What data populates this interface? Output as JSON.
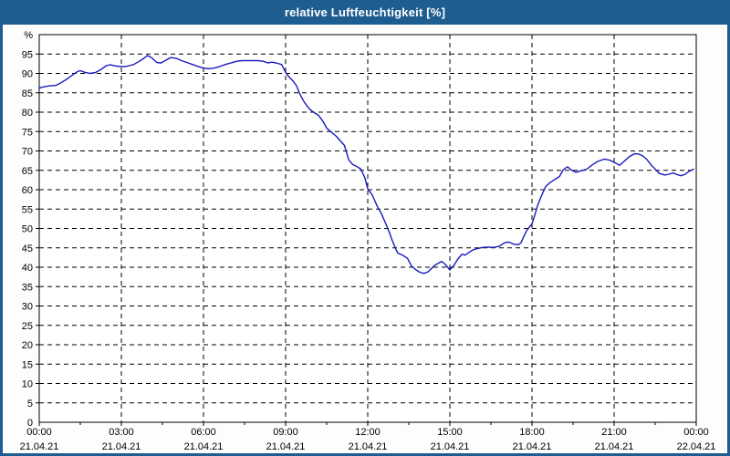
{
  "window": {
    "title": "relative Luftfeuchtigkeit [%]"
  },
  "colors": {
    "titlebar": "#1e5d90",
    "window_border": "#1e5d90",
    "line": "#1a1abd",
    "grid": "#000000",
    "frame": "#000000",
    "plot_background": "#ffffff",
    "text": "#000000"
  },
  "chart_data": {
    "type": "line",
    "title": "relative Luftfeuchtigkeit [%]",
    "xlabel": "",
    "ylabel": "%",
    "ylim": [
      0,
      100
    ],
    "ytick_step": 5,
    "ytick_labels": [
      "0",
      "5",
      "10",
      "15",
      "20",
      "25",
      "30",
      "35",
      "40",
      "45",
      "50",
      "55",
      "60",
      "65",
      "70",
      "75",
      "80",
      "85",
      "90",
      "95"
    ],
    "y_unit_label": "%",
    "xlim_hours": [
      0,
      24
    ],
    "xtick_interval_hours": 3,
    "x_minor_tick_hours": 1.5,
    "grid": "dashed",
    "legend": "none",
    "xticks": [
      {
        "time": "00:00",
        "date": "21.04.21"
      },
      {
        "time": "03:00",
        "date": "21.04.21"
      },
      {
        "time": "06:00",
        "date": "21.04.21"
      },
      {
        "time": "09:00",
        "date": "21.04.21"
      },
      {
        "time": "12:00",
        "date": "21.04.21"
      },
      {
        "time": "15:00",
        "date": "21.04.21"
      },
      {
        "time": "18:00",
        "date": "21.04.21"
      },
      {
        "time": "21:00",
        "date": "21.04.21"
      },
      {
        "time": "00:00",
        "date": "22.04.21"
      }
    ],
    "series": [
      {
        "name": "relative Luftfeuchtigkeit",
        "color": "#1a1abd",
        "points": [
          [
            0.0,
            86.2
          ],
          [
            0.2,
            86.6
          ],
          [
            0.4,
            86.8
          ],
          [
            0.6,
            86.9
          ],
          [
            0.8,
            87.6
          ],
          [
            1.0,
            88.5
          ],
          [
            1.2,
            89.5
          ],
          [
            1.4,
            90.5
          ],
          [
            1.5,
            90.7
          ],
          [
            1.65,
            90.3
          ],
          [
            1.85,
            90.0
          ],
          [
            2.05,
            90.2
          ],
          [
            2.25,
            91.0
          ],
          [
            2.45,
            92.0
          ],
          [
            2.6,
            92.2
          ],
          [
            2.8,
            91.9
          ],
          [
            3.0,
            91.8
          ],
          [
            3.15,
            91.8
          ],
          [
            3.3,
            92.0
          ],
          [
            3.45,
            92.3
          ],
          [
            3.6,
            92.9
          ],
          [
            3.8,
            93.8
          ],
          [
            3.95,
            94.6
          ],
          [
            4.1,
            94.1
          ],
          [
            4.3,
            92.8
          ],
          [
            4.45,
            92.7
          ],
          [
            4.6,
            93.3
          ],
          [
            4.8,
            94.1
          ],
          [
            5.0,
            93.9
          ],
          [
            5.2,
            93.3
          ],
          [
            5.4,
            92.8
          ],
          [
            5.6,
            92.3
          ],
          [
            5.8,
            91.8
          ],
          [
            6.0,
            91.4
          ],
          [
            6.2,
            91.2
          ],
          [
            6.4,
            91.4
          ],
          [
            6.6,
            91.8
          ],
          [
            6.8,
            92.3
          ],
          [
            7.0,
            92.7
          ],
          [
            7.2,
            93.1
          ],
          [
            7.4,
            93.3
          ],
          [
            7.7,
            93.3
          ],
          [
            8.0,
            93.3
          ],
          [
            8.2,
            93.1
          ],
          [
            8.35,
            92.7
          ],
          [
            8.5,
            92.9
          ],
          [
            8.65,
            92.7
          ],
          [
            8.85,
            92.3
          ],
          [
            9.0,
            90.3
          ],
          [
            9.1,
            89.3
          ],
          [
            9.25,
            88.2
          ],
          [
            9.4,
            86.8
          ],
          [
            9.5,
            85.0
          ],
          [
            9.6,
            83.6
          ],
          [
            9.7,
            82.4
          ],
          [
            9.85,
            81.0
          ],
          [
            10.0,
            80.1
          ],
          [
            10.2,
            79.2
          ],
          [
            10.35,
            77.8
          ],
          [
            10.5,
            75.9
          ],
          [
            10.65,
            75.0
          ],
          [
            10.85,
            73.8
          ],
          [
            11.0,
            72.6
          ],
          [
            11.15,
            71.4
          ],
          [
            11.3,
            67.8
          ],
          [
            11.45,
            66.5
          ],
          [
            11.6,
            66.0
          ],
          [
            11.75,
            65.3
          ],
          [
            11.9,
            63.0
          ],
          [
            12.0,
            60.2
          ],
          [
            12.15,
            58.8
          ],
          [
            12.25,
            57.3
          ],
          [
            12.35,
            55.7
          ],
          [
            12.5,
            53.8
          ],
          [
            12.65,
            51.4
          ],
          [
            12.8,
            48.8
          ],
          [
            12.9,
            46.8
          ],
          [
            13.0,
            45.1
          ],
          [
            13.1,
            43.6
          ],
          [
            13.25,
            43.2
          ],
          [
            13.45,
            42.3
          ],
          [
            13.6,
            40.3
          ],
          [
            13.75,
            39.4
          ],
          [
            13.9,
            38.7
          ],
          [
            14.05,
            38.4
          ],
          [
            14.2,
            38.8
          ],
          [
            14.45,
            40.5
          ],
          [
            14.7,
            41.5
          ],
          [
            14.85,
            40.6
          ],
          [
            15.0,
            39.3
          ],
          [
            15.15,
            40.5
          ],
          [
            15.3,
            42.2
          ],
          [
            15.45,
            43.4
          ],
          [
            15.55,
            43.1
          ],
          [
            15.7,
            43.8
          ],
          [
            15.85,
            44.5
          ],
          [
            16.0,
            44.8
          ],
          [
            16.2,
            45.1
          ],
          [
            16.4,
            45.2
          ],
          [
            16.6,
            45.1
          ],
          [
            16.8,
            45.4
          ],
          [
            17.0,
            46.3
          ],
          [
            17.15,
            46.5
          ],
          [
            17.35,
            45.9
          ],
          [
            17.5,
            45.8
          ],
          [
            17.6,
            46.3
          ],
          [
            17.7,
            47.9
          ],
          [
            17.8,
            49.4
          ],
          [
            17.9,
            50.3
          ],
          [
            18.0,
            51.2
          ],
          [
            18.1,
            53.4
          ],
          [
            18.2,
            55.8
          ],
          [
            18.35,
            58.5
          ],
          [
            18.5,
            60.8
          ],
          [
            18.65,
            61.8
          ],
          [
            18.8,
            62.5
          ],
          [
            19.0,
            63.4
          ],
          [
            19.15,
            65.2
          ],
          [
            19.3,
            65.9
          ],
          [
            19.45,
            65.0
          ],
          [
            19.6,
            64.5
          ],
          [
            19.8,
            64.9
          ],
          [
            20.0,
            65.3
          ],
          [
            20.2,
            66.4
          ],
          [
            20.4,
            67.3
          ],
          [
            20.65,
            67.9
          ],
          [
            20.85,
            67.6
          ],
          [
            21.05,
            66.9
          ],
          [
            21.2,
            66.3
          ],
          [
            21.35,
            67.2
          ],
          [
            21.55,
            68.5
          ],
          [
            21.75,
            69.3
          ],
          [
            21.9,
            69.2
          ],
          [
            22.05,
            68.7
          ],
          [
            22.2,
            67.8
          ],
          [
            22.35,
            66.4
          ],
          [
            22.5,
            65.3
          ],
          [
            22.65,
            64.2
          ],
          [
            22.85,
            63.8
          ],
          [
            23.0,
            64.0
          ],
          [
            23.15,
            64.3
          ],
          [
            23.3,
            63.9
          ],
          [
            23.45,
            63.6
          ],
          [
            23.6,
            64.0
          ],
          [
            23.75,
            64.8
          ],
          [
            23.9,
            65.3
          ]
        ]
      }
    ]
  }
}
